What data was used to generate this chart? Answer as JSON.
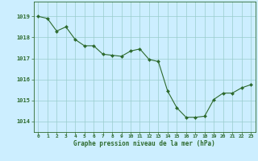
{
  "hours": [
    0,
    1,
    2,
    3,
    4,
    5,
    6,
    7,
    8,
    9,
    10,
    11,
    12,
    13,
    14,
    15,
    16,
    17,
    18,
    19,
    20,
    21,
    22,
    23
  ],
  "pressure": [
    1019.0,
    1018.9,
    1018.3,
    1018.5,
    1017.9,
    1017.6,
    1017.6,
    1017.2,
    1017.15,
    1017.1,
    1017.35,
    1017.45,
    1016.95,
    1016.85,
    1015.45,
    1014.65,
    1014.2,
    1014.2,
    1014.25,
    1015.05,
    1015.35,
    1015.35,
    1015.6,
    1015.75
  ],
  "line_color": "#2d6a2d",
  "marker_color": "#2d6a2d",
  "bg_color": "#cceeff",
  "grid_color": "#99cccc",
  "axis_color": "#2d6a2d",
  "tick_color": "#2d6a2d",
  "label_color": "#2d6a2d",
  "xlabel": "Graphe pression niveau de la mer (hPa)",
  "ylim": [
    1013.5,
    1019.7
  ],
  "yticks": [
    1014,
    1015,
    1016,
    1017,
    1018,
    1019
  ],
  "xticks": [
    0,
    1,
    2,
    3,
    4,
    5,
    6,
    7,
    8,
    9,
    10,
    11,
    12,
    13,
    14,
    15,
    16,
    17,
    18,
    19,
    20,
    21,
    22,
    23
  ]
}
